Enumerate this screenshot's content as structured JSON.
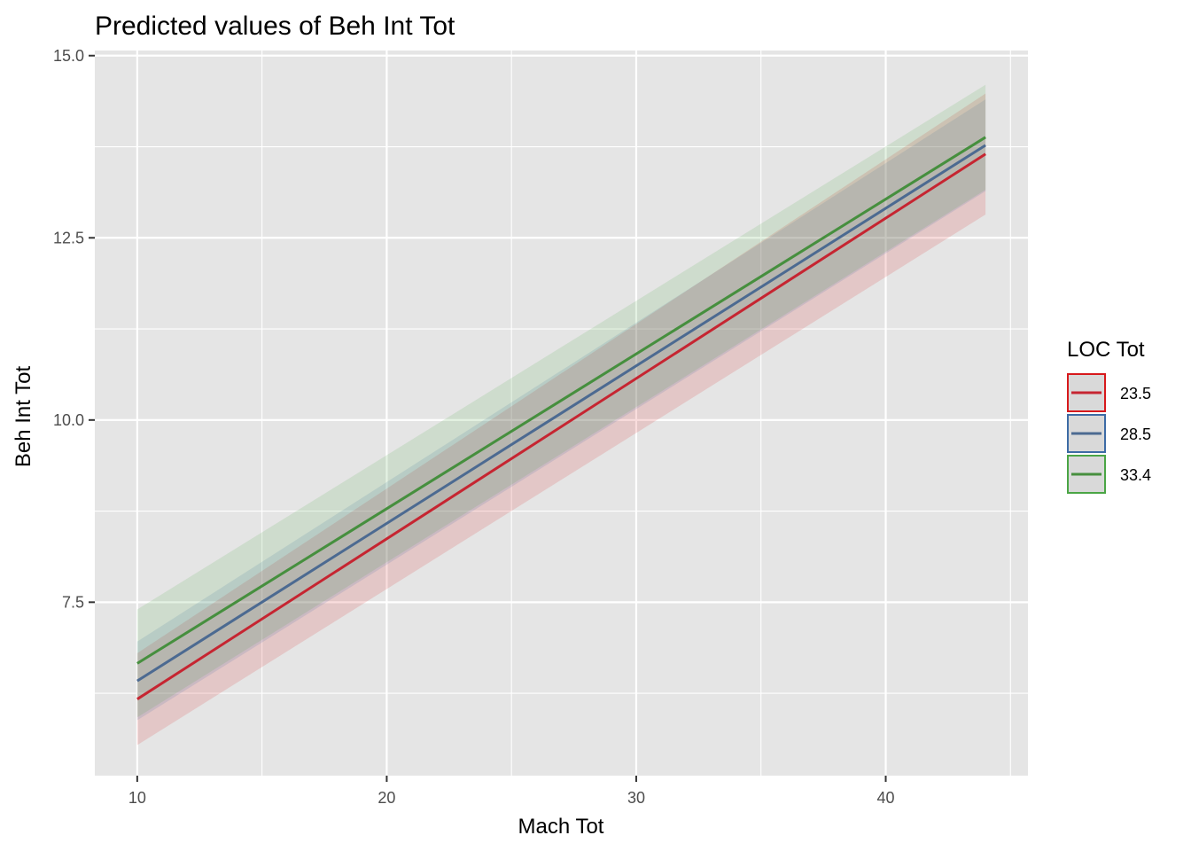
{
  "chart_data": {
    "type": "line",
    "title": "Predicted values of Beh Int Tot",
    "xlabel": "Mach Tot",
    "ylabel": "Beh Int Tot",
    "xlim": [
      8.3,
      45.7
    ],
    "ylim": [
      5.12,
      15.07
    ],
    "x_ticks": [
      10,
      20,
      30,
      40
    ],
    "x_tick_labels": [
      "10",
      "20",
      "30",
      "40"
    ],
    "x_minor": [
      15,
      25,
      35,
      45
    ],
    "y_ticks": [
      7.5,
      10.0,
      12.5,
      15.0
    ],
    "y_tick_labels": [
      "7.5",
      "10.0",
      "12.5",
      "15.0"
    ],
    "y_minor": [
      6.25,
      8.75,
      11.25,
      13.75
    ],
    "grid": true,
    "legend": {
      "title": "LOC Tot",
      "position": "right"
    },
    "colors": {
      "panel": "#e5e5e5",
      "grid": "#ffffff"
    },
    "series": [
      {
        "name": "23.5",
        "color": "#d7191c",
        "line_color": "#c62531",
        "x": [
          10,
          44
        ],
        "y": [
          6.17,
          13.65
        ],
        "ci_low": [
          5.54,
          12.82
        ],
        "ci_high": [
          6.8,
          14.48
        ]
      },
      {
        "name": "28.5",
        "color": "#3d6ba5",
        "line_color": "#4c6a91",
        "x": [
          10,
          44
        ],
        "y": [
          6.42,
          13.77
        ],
        "ci_low": [
          5.88,
          13.14
        ],
        "ci_high": [
          6.96,
          14.4
        ]
      },
      {
        "name": "33.4",
        "color": "#4aa545",
        "line_color": "#468f3e",
        "x": [
          10,
          44
        ],
        "y": [
          6.66,
          13.88
        ],
        "ci_low": [
          5.92,
          13.16
        ],
        "ci_high": [
          7.4,
          14.6
        ]
      }
    ]
  }
}
